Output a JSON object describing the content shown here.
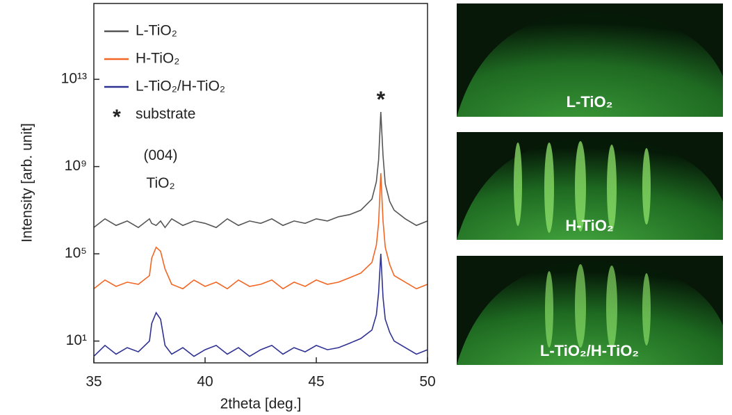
{
  "chart_data": {
    "type": "line",
    "log_y": true,
    "x_label": "2theta [deg.]",
    "y_label": "Intensity [arb. unit]",
    "x": [
      35,
      35.5,
      36,
      36.5,
      37,
      37.5,
      37.6,
      37.8,
      38,
      38.2,
      38.5,
      39,
      39.5,
      40,
      40.5,
      41,
      41.5,
      42,
      42.5,
      43,
      43.5,
      44,
      44.5,
      45,
      45.5,
      46,
      46.5,
      47,
      47.5,
      47.7,
      47.8,
      47.9,
      48,
      48.1,
      48.3,
      48.5,
      49,
      49.5,
      50
    ],
    "series": [
      {
        "name": "L-TiO₂",
        "color": "#555555",
        "values": [
          1600000,
          4000000,
          2000000,
          3200000,
          1600000,
          4000000,
          2500000,
          2000000,
          3200000,
          1600000,
          4000000,
          2000000,
          3200000,
          2500000,
          1600000,
          4000000,
          2000000,
          3200000,
          2500000,
          4000000,
          2000000,
          3200000,
          2500000,
          4000000,
          3200000,
          5000000,
          6300000,
          10000000,
          32000000,
          200000000,
          2000000000,
          320000000000,
          3200000000,
          160000000,
          25000000,
          10000000,
          4000000,
          2000000,
          3200000
        ]
      },
      {
        "name": "H-TiO₂",
        "color": "#f26522",
        "values": [
          2500,
          6300,
          3200,
          5000,
          4000,
          10000,
          63000,
          200000,
          130000,
          20000,
          4000,
          2500,
          6300,
          3200,
          5000,
          2500,
          6300,
          3200,
          4000,
          6300,
          2500,
          5000,
          3200,
          6300,
          4000,
          5000,
          8000,
          13000,
          40000,
          250000,
          2500000,
          500000000,
          3200000,
          200000,
          32000,
          10000,
          5000,
          2500,
          4000
        ]
      },
      {
        "name": "L-TiO₂/H-TiO₂",
        "color": "#2e3192",
        "values": [
          2,
          6.3,
          2.5,
          5,
          3.2,
          10,
          63,
          200,
          100,
          6.3,
          2.5,
          5,
          2,
          4,
          6.3,
          2.5,
          5,
          2,
          4,
          6.3,
          2.5,
          5,
          3.2,
          6.3,
          4,
          5,
          8,
          13,
          32,
          160,
          1600,
          100000,
          1000,
          100,
          25,
          10,
          5,
          2.5,
          4
        ]
      }
    ],
    "legend_marker": {
      "symbol": "*",
      "label": "substrate"
    },
    "annotations": [
      {
        "text": "(004)",
        "x": 38,
        "y": 3000000000
      },
      {
        "text": "TiO₂",
        "x": 38,
        "y": 160000000
      },
      {
        "text": "*",
        "x": 47.9,
        "y": 1000000000000.0
      }
    ],
    "xlim": [
      35,
      50
    ],
    "xticks": [
      35,
      40,
      45,
      50
    ],
    "ylim": [
      1,
      3e+16
    ],
    "yticks": [
      {
        "value": 10,
        "label": "10¹"
      },
      {
        "value": 100000,
        "label": "10⁵"
      },
      {
        "value": 1000000000,
        "label": "10⁹"
      },
      {
        "value": 10000000000000,
        "label": "10¹³"
      }
    ]
  },
  "images": [
    {
      "label": "L-TiO₂"
    },
    {
      "label": "H-TiO₂"
    },
    {
      "label": "L-TiO₂/H-TiO₂"
    }
  ]
}
